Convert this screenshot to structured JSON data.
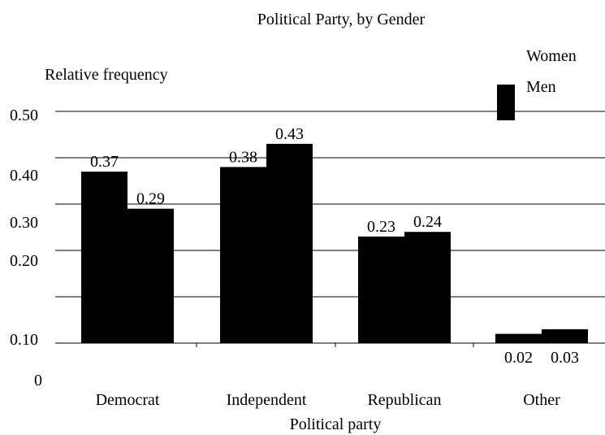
{
  "chart_data": {
    "type": "bar",
    "title": "Political Party,  by Gender",
    "xlabel": "Political party",
    "ylabel": "Relative frequency",
    "categories": [
      "Democrat",
      "Independent",
      "Republican",
      "Other"
    ],
    "series": [
      {
        "name": "Women",
        "values": [
          0.37,
          0.38,
          0.23,
          0.02
        ],
        "value_labels": [
          "0.37",
          "0.38",
          "0.23",
          "0.02"
        ],
        "color": "#000000"
      },
      {
        "name": "Men",
        "values": [
          0.29,
          0.43,
          0.24,
          0.03
        ],
        "value_labels": [
          "0.29",
          "0.43",
          "0.24",
          "0.03"
        ],
        "color": "#000000"
      }
    ],
    "y_tick_labels": [
      "0",
      "0.10",
      "0.20",
      "0.30",
      "0.40",
      "0.50"
    ],
    "ylim": [
      0,
      0.5
    ],
    "grid": true,
    "legend": {
      "position": "top-right",
      "entries": [
        "Women",
        "Men"
      ]
    },
    "colors": {
      "bar": "#000000",
      "grid": "#000000",
      "background": "#ffffff"
    }
  }
}
